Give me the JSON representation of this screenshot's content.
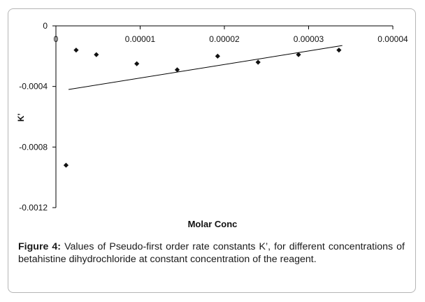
{
  "chart_data": {
    "type": "scatter",
    "title": "",
    "xlabel": "Molar Conc",
    "ylabel": "K’",
    "xlim": [
      0,
      4e-05
    ],
    "ylim": [
      -0.0012,
      0
    ],
    "xticks": [
      "0",
      "0.00001",
      "0.00002",
      "0.00003",
      "0.00004"
    ],
    "xtick_values": [
      0,
      1e-05,
      2e-05,
      3e-05,
      4e-05
    ],
    "yticks": [
      "0",
      "-0.0004",
      "-0.0008",
      "-0.0012"
    ],
    "ytick_values": [
      0,
      -0.0004,
      -0.0008,
      -0.0012
    ],
    "series": [
      {
        "name": "K’",
        "x": [
          1.2e-06,
          2.4e-06,
          4.8e-06,
          9.6e-06,
          1.44e-05,
          1.92e-05,
          2.4e-05,
          2.88e-05,
          3.36e-05
        ],
        "y": [
          -0.00092,
          -0.00016,
          -0.00019,
          -0.00025,
          -0.00029,
          -0.0002,
          -0.00024,
          -0.00019,
          -0.00016
        ]
      }
    ],
    "trendline": {
      "x": [
        1.5e-06,
        3.4e-05
      ],
      "y": [
        -0.00042,
        -0.00013
      ]
    },
    "grid": false,
    "legend": "none"
  },
  "caption": {
    "label": "Figure 4:",
    "text": "Values of Pseudo-first order rate constants K’, for different concentrations of betahistine dihydrochloride at constant concentration of the reagent."
  }
}
